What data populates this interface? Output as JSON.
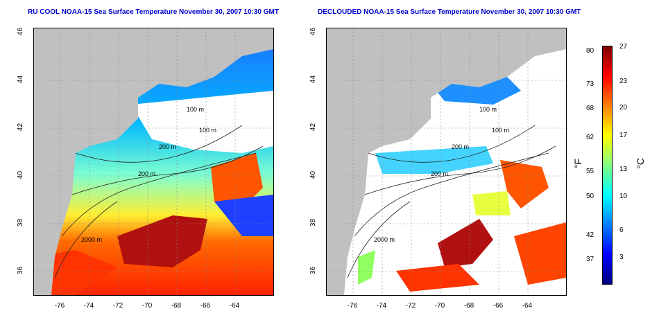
{
  "panels": [
    {
      "title": "RU COOL NOAA-15 Sea Surface Temperature November 30, 2007 10:30 GMT"
    },
    {
      "title": "DECLOUDED NOAA-15 Sea Surface Temperature November 30, 2007 10:30 GMT"
    }
  ],
  "axes": {
    "lon_ticks": [
      "-76",
      "-74",
      "-72",
      "-70",
      "-68",
      "-66",
      "-64"
    ],
    "lat_ticks": [
      "36",
      "38",
      "40",
      "42",
      "44",
      "46"
    ]
  },
  "contour_labels": {
    "panel1": [
      "100 m",
      "100 m",
      "200 m",
      "200 m",
      "2000 m"
    ],
    "panel2": [
      "100 m",
      "100 m",
      "200 m",
      "200 m",
      "2000 m"
    ]
  },
  "colorbar": {
    "fahrenheit_ticks": [
      "80",
      "73",
      "68",
      "62",
      "55",
      "50",
      "42",
      "37"
    ],
    "celsius_ticks": [
      "27",
      "23",
      "20",
      "17",
      "13",
      "10",
      "6",
      "3"
    ],
    "unit_f": "°F",
    "unit_c": "°C",
    "colors": [
      "#00007f",
      "#0000ff",
      "#0080ff",
      "#00ffff",
      "#80ff80",
      "#ffff00",
      "#ff8000",
      "#ff0000",
      "#7f0000"
    ]
  },
  "land_color": "#c0c0c0"
}
